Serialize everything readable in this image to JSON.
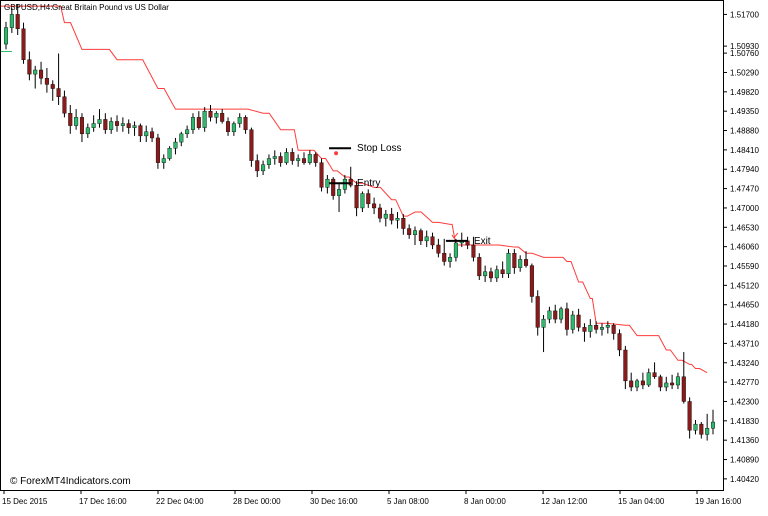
{
  "header": {
    "symbol_timeframe": "GBPUSD,H4:",
    "description": "Great Britain Pound vs US Dollar"
  },
  "watermark": "© ForexMT4Indicators.com",
  "colors": {
    "bull": "#2eb86b",
    "bear": "#8b1a1a",
    "trailing_stop": "#ff3b3b",
    "axis": "#000000",
    "background": "#ffffff"
  },
  "chart_data": {
    "type": "candlestick",
    "ylim": [
      1.4015,
      1.5205
    ],
    "y_ticks": [
      "1.51700",
      "1.50930",
      "1.50760",
      "1.50290",
      "1.49820",
      "1.49350",
      "1.48880",
      "1.48410",
      "1.47940",
      "1.47470",
      "1.47000",
      "1.46530",
      "1.46060",
      "1.45590",
      "1.45120",
      "1.44650",
      "1.44180",
      "1.43710",
      "1.43240",
      "1.42770",
      "1.42300",
      "1.41830",
      "1.41360",
      "1.40890",
      "1.40420"
    ],
    "x_ticks": [
      "15 Dec 2015",
      "17 Dec 16:00",
      "22 Dec 04:00",
      "28 Dec 00:00",
      "30 Dec 16:00",
      "5 Jan 08:00",
      "8 Jan 00:00",
      "12 Jan 12:00",
      "15 Jan 04:00",
      "19 Jan 16:00"
    ],
    "candles": [
      [
        1.5098,
        1.5152,
        1.5085,
        1.5138
      ],
      [
        1.5138,
        1.5185,
        1.5125,
        1.517
      ],
      [
        1.517,
        1.5195,
        1.512,
        1.5135
      ],
      [
        1.5135,
        1.515,
        1.505,
        1.506
      ],
      [
        1.506,
        1.508,
        1.501,
        1.5025
      ],
      [
        1.5025,
        1.5045,
        1.499,
        1.5035
      ],
      [
        1.5035,
        1.5055,
        1.5,
        1.5015
      ],
      [
        1.5015,
        1.504,
        1.498,
        1.5
      ],
      [
        1.5,
        1.501,
        1.496,
        1.499
      ],
      [
        1.499,
        1.5075,
        1.495,
        1.497
      ],
      [
        1.497,
        1.4985,
        1.492,
        1.493
      ],
      [
        1.493,
        1.495,
        1.488,
        1.49
      ],
      [
        1.49,
        1.494,
        1.489,
        1.492
      ],
      [
        1.492,
        1.493,
        1.486,
        1.488
      ],
      [
        1.488,
        1.4905,
        1.487,
        1.4895
      ],
      [
        1.4895,
        1.4925,
        1.4885,
        1.4905
      ],
      [
        1.4905,
        1.494,
        1.4895,
        1.4915
      ],
      [
        1.4915,
        1.493,
        1.488,
        1.489
      ],
      [
        1.489,
        1.492,
        1.488,
        1.491
      ],
      [
        1.491,
        1.4925,
        1.4885,
        1.49
      ],
      [
        1.49,
        1.492,
        1.4885,
        1.4905
      ],
      [
        1.4905,
        1.4915,
        1.488,
        1.4895
      ],
      [
        1.4895,
        1.491,
        1.4875,
        1.49
      ],
      [
        1.49,
        1.4905,
        1.486,
        1.4875
      ],
      [
        1.4875,
        1.49,
        1.486,
        1.4885
      ],
      [
        1.4885,
        1.4895,
        1.486,
        1.487
      ],
      [
        1.487,
        1.488,
        1.4795,
        1.481
      ],
      [
        1.481,
        1.483,
        1.4795,
        1.482
      ],
      [
        1.482,
        1.485,
        1.4815,
        1.4845
      ],
      [
        1.4845,
        1.487,
        1.483,
        1.486
      ],
      [
        1.486,
        1.4885,
        1.485,
        1.488
      ],
      [
        1.488,
        1.49,
        1.487,
        1.489
      ],
      [
        1.489,
        1.493,
        1.488,
        1.492
      ],
      [
        1.492,
        1.4935,
        1.489,
        1.4895
      ],
      [
        1.4895,
        1.4945,
        1.4885,
        1.4935
      ],
      [
        1.4935,
        1.495,
        1.491,
        1.492
      ],
      [
        1.492,
        1.4935,
        1.4905,
        1.493
      ],
      [
        1.493,
        1.494,
        1.4905,
        1.491
      ],
      [
        1.491,
        1.492,
        1.4875,
        1.4885
      ],
      [
        1.4885,
        1.491,
        1.4875,
        1.4905
      ],
      [
        1.4905,
        1.493,
        1.4895,
        1.492
      ],
      [
        1.492,
        1.4925,
        1.488,
        1.489
      ],
      [
        1.489,
        1.4895,
        1.48,
        1.4815
      ],
      [
        1.4815,
        1.483,
        1.4775,
        1.479
      ],
      [
        1.479,
        1.4815,
        1.478,
        1.4805
      ],
      [
        1.4805,
        1.483,
        1.4795,
        1.482
      ],
      [
        1.482,
        1.484,
        1.4805,
        1.4825
      ],
      [
        1.4825,
        1.4835,
        1.48,
        1.481
      ],
      [
        1.481,
        1.4845,
        1.4805,
        1.4835
      ],
      [
        1.4835,
        1.4845,
        1.4805,
        1.4815
      ],
      [
        1.4815,
        1.483,
        1.48,
        1.482
      ],
      [
        1.482,
        1.4835,
        1.4805,
        1.481
      ],
      [
        1.481,
        1.484,
        1.4805,
        1.483
      ],
      [
        1.483,
        1.4835,
        1.48,
        1.481
      ],
      [
        1.481,
        1.482,
        1.474,
        1.475
      ],
      [
        1.475,
        1.478,
        1.4735,
        1.477
      ],
      [
        1.477,
        1.4775,
        1.472,
        1.473
      ],
      [
        1.473,
        1.476,
        1.469,
        1.4745
      ],
      [
        1.4745,
        1.478,
        1.4735,
        1.477
      ],
      [
        1.477,
        1.48,
        1.475,
        1.4755
      ],
      [
        1.4755,
        1.4765,
        1.468,
        1.47
      ],
      [
        1.47,
        1.474,
        1.469,
        1.4735
      ],
      [
        1.4735,
        1.4745,
        1.47,
        1.471
      ],
      [
        1.471,
        1.4725,
        1.4685,
        1.47
      ],
      [
        1.47,
        1.471,
        1.4665,
        1.4675
      ],
      [
        1.4675,
        1.4695,
        1.4655,
        1.4685
      ],
      [
        1.4685,
        1.47,
        1.466,
        1.467
      ],
      [
        1.467,
        1.469,
        1.465,
        1.4675
      ],
      [
        1.4675,
        1.4685,
        1.4635,
        1.465
      ],
      [
        1.465,
        1.466,
        1.4625,
        1.4635
      ],
      [
        1.4635,
        1.4655,
        1.461,
        1.4645
      ],
      [
        1.4645,
        1.465,
        1.461,
        1.462
      ],
      [
        1.462,
        1.4645,
        1.4605,
        1.463
      ],
      [
        1.463,
        1.464,
        1.46,
        1.461
      ],
      [
        1.461,
        1.4625,
        1.458,
        1.459
      ],
      [
        1.459,
        1.4625,
        1.456,
        1.457
      ],
      [
        1.457,
        1.459,
        1.4555,
        1.458
      ],
      [
        1.458,
        1.4625,
        1.457,
        1.4615
      ],
      [
        1.4615,
        1.464,
        1.4605,
        1.462
      ],
      [
        1.462,
        1.463,
        1.46,
        1.461
      ],
      [
        1.461,
        1.463,
        1.457,
        1.458
      ],
      [
        1.458,
        1.459,
        1.4525,
        1.4535
      ],
      [
        1.4535,
        1.456,
        1.452,
        1.4545
      ],
      [
        1.4545,
        1.4555,
        1.452,
        1.453
      ],
      [
        1.453,
        1.456,
        1.452,
        1.455
      ],
      [
        1.455,
        1.457,
        1.453,
        1.454
      ],
      [
        1.454,
        1.46,
        1.453,
        1.459
      ],
      [
        1.459,
        1.46,
        1.454,
        1.4555
      ],
      [
        1.4555,
        1.4585,
        1.4545,
        1.4575
      ],
      [
        1.4575,
        1.4595,
        1.4555,
        1.456
      ],
      [
        1.456,
        1.4565,
        1.447,
        1.4485
      ],
      [
        1.4485,
        1.45,
        1.439,
        1.441
      ],
      [
        1.441,
        1.444,
        1.435,
        1.443
      ],
      [
        1.443,
        1.446,
        1.442,
        1.445
      ],
      [
        1.445,
        1.4465,
        1.442,
        1.443
      ],
      [
        1.443,
        1.446,
        1.442,
        1.4455
      ],
      [
        1.4455,
        1.447,
        1.439,
        1.4405
      ],
      [
        1.4405,
        1.445,
        1.4395,
        1.444
      ],
      [
        1.444,
        1.4455,
        1.44,
        1.441
      ],
      [
        1.441,
        1.442,
        1.4375,
        1.44
      ],
      [
        1.44,
        1.443,
        1.4385,
        1.4415
      ],
      [
        1.4415,
        1.4425,
        1.4395,
        1.4405
      ],
      [
        1.4405,
        1.442,
        1.439,
        1.441
      ],
      [
        1.441,
        1.4425,
        1.4395,
        1.4415
      ],
      [
        1.4415,
        1.442,
        1.438,
        1.4395
      ],
      [
        1.4395,
        1.4405,
        1.434,
        1.4355
      ],
      [
        1.4355,
        1.4365,
        1.426,
        1.428
      ],
      [
        1.428,
        1.43,
        1.4255,
        1.4265
      ],
      [
        1.4265,
        1.4285,
        1.4255,
        1.428
      ],
      [
        1.428,
        1.43,
        1.426,
        1.427
      ],
      [
        1.427,
        1.431,
        1.4265,
        1.43
      ],
      [
        1.43,
        1.4325,
        1.4285,
        1.429
      ],
      [
        1.429,
        1.4295,
        1.4255,
        1.4265
      ],
      [
        1.4265,
        1.429,
        1.4255,
        1.4275
      ],
      [
        1.4275,
        1.4295,
        1.426,
        1.427
      ],
      [
        1.427,
        1.43,
        1.426,
        1.429
      ],
      [
        1.429,
        1.435,
        1.4225,
        1.423
      ],
      [
        1.423,
        1.424,
        1.414,
        1.416
      ],
      [
        1.416,
        1.4185,
        1.415,
        1.4175
      ],
      [
        1.4175,
        1.418,
        1.414,
        1.415
      ],
      [
        1.415,
        1.42,
        1.4135,
        1.4165
      ],
      [
        1.4165,
        1.421,
        1.415,
        1.418
      ]
    ],
    "trailing_stop": [
      [
        0,
        1.519
      ],
      [
        9,
        1.519
      ],
      [
        10,
        1.515
      ],
      [
        13,
        1.5085
      ],
      [
        17,
        1.5085
      ],
      [
        19,
        1.506
      ],
      [
        22,
        1.506
      ],
      [
        26,
        1.499
      ],
      [
        29,
        1.494
      ],
      [
        40,
        1.494
      ],
      [
        44,
        1.493
      ],
      [
        47,
        1.489
      ],
      [
        49,
        1.489
      ],
      [
        50,
        1.484
      ],
      [
        52,
        1.484
      ],
      [
        54,
        1.482
      ],
      [
        56,
        1.479
      ],
      [
        58,
        1.4775
      ],
      [
        60,
        1.476
      ],
      [
        63,
        1.475
      ],
      [
        66,
        1.472
      ],
      [
        68,
        1.468
      ],
      [
        70,
        1.469
      ],
      [
        73,
        1.4665
      ],
      [
        76,
        1.466
      ],
      [
        77,
        1.461
      ],
      [
        83,
        1.461
      ],
      [
        87,
        1.4605
      ],
      [
        89,
        1.459
      ],
      [
        92,
        1.458
      ],
      [
        95,
        1.458
      ],
      [
        96,
        1.457
      ],
      [
        98,
        1.452
      ],
      [
        100,
        1.448
      ],
      [
        101,
        1.442
      ],
      [
        106,
        1.4415
      ],
      [
        108,
        1.439
      ],
      [
        111,
        1.439
      ],
      [
        113,
        1.4355
      ],
      [
        115,
        1.433
      ],
      [
        117,
        1.432
      ],
      [
        118,
        1.431
      ],
      [
        120,
        1.43
      ]
    ],
    "annotations": [
      {
        "label": "Stop Loss",
        "index": 57,
        "price": 1.4845
      },
      {
        "label": "Entry",
        "index": 57,
        "price": 1.476
      },
      {
        "label": "Exit",
        "index": 77,
        "price": 1.462
      }
    ]
  }
}
